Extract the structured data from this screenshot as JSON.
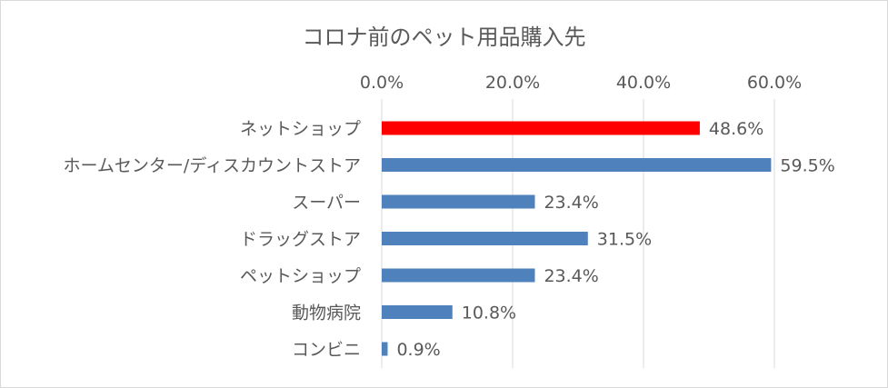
{
  "chart_data": {
    "type": "bar",
    "orientation": "horizontal",
    "title": "コロナ前のペット用品購入先",
    "xlabel": "",
    "ylabel": "",
    "xlim": [
      0,
      60
    ],
    "x_ticks": [
      "0.0%",
      "20.0%",
      "40.0%",
      "60.0%"
    ],
    "x_axis_position": "top",
    "grid": true,
    "legend": "none",
    "categories": [
      "ネットショップ",
      "ホームセンター/ディスカウントストア",
      "スーパー",
      "ドラッグストア",
      "ペットショップ",
      "動物病院",
      "コンビニ"
    ],
    "values": [
      48.6,
      59.5,
      23.4,
      31.5,
      23.4,
      10.8,
      0.9
    ],
    "data_labels": [
      "48.6%",
      "59.5%",
      "23.4%",
      "31.5%",
      "23.4%",
      "10.8%",
      "0.9%"
    ],
    "bar_colors": [
      "#ff0000",
      "#4f81bd",
      "#4f81bd",
      "#4f81bd",
      "#4f81bd",
      "#4f81bd",
      "#4f81bd"
    ]
  }
}
